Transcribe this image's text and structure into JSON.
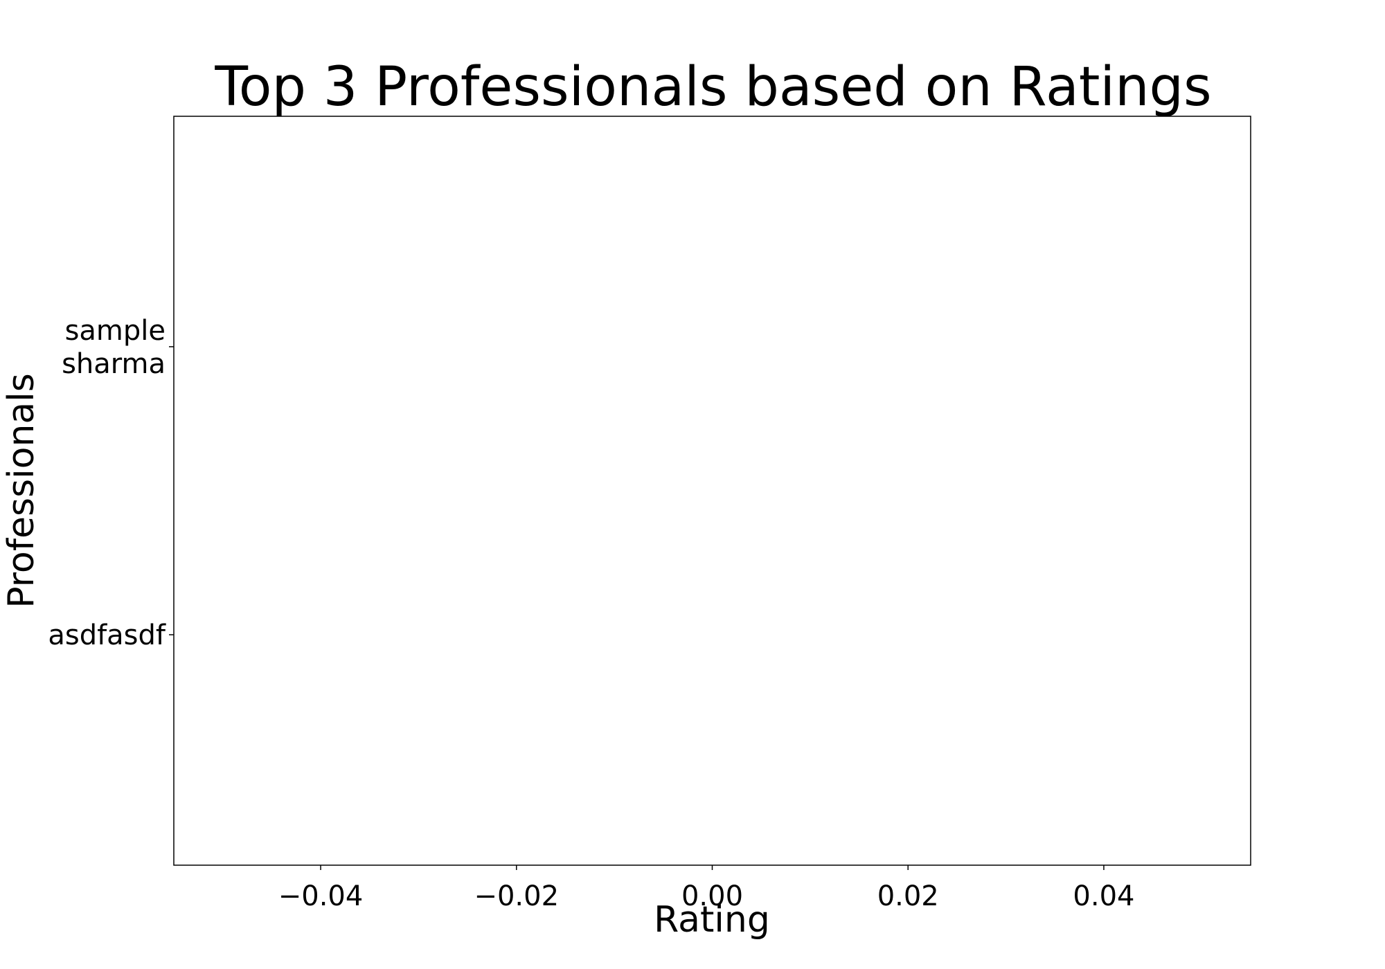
{
  "chart_data": {
    "type": "bar",
    "orientation": "horizontal",
    "title": "Top 3 Professionals based on Ratings",
    "xlabel": "Rating",
    "ylabel": "Professionals",
    "categories": [
      [
        "sample",
        "sharma"
      ],
      [
        "asdfasdf"
      ]
    ],
    "values": [
      0,
      0
    ],
    "xlim": [
      -0.055,
      0.055
    ],
    "xticks": [
      -0.04,
      -0.02,
      0.0,
      0.02,
      0.04
    ],
    "xtick_labels": [
      "−0.04",
      "−0.02",
      "0.00",
      "0.02",
      "0.04"
    ],
    "grid": false,
    "legend": false
  }
}
